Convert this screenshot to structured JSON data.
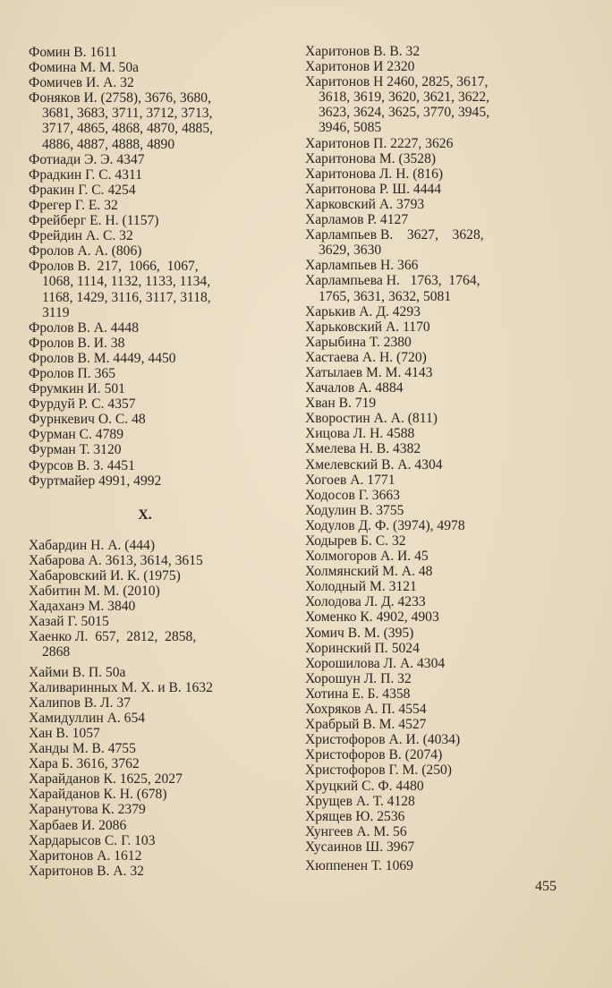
{
  "page_number": "455",
  "left_column": {
    "entries_before": [
      [
        "Фомин В. 1611"
      ],
      [
        "Фомина М. М. 50а"
      ],
      [
        "Фомичев И. А. 32"
      ],
      [
        "Фоняков И. (2758), 3676, 3680,",
        "3681, 3683, 3711, 3712, 3713,",
        "3717, 4865, 4868, 4870, 4885,",
        "4886, 4887, 4888, 4890"
      ],
      [
        "Фотиади Э. Э. 4347"
      ],
      [
        "Фрадкин Г. С. 4311"
      ],
      [
        "Фракин Г. С. 4254"
      ],
      [
        "Фрегер Г. Е. 32"
      ],
      [
        "Фрейберг Е. Н. (1157)"
      ],
      [
        "Фрейдин А. С. 32"
      ],
      [
        "Фролов А. А. (806)"
      ],
      [
        "Фролов В.  217,  1066,  1067,",
        "1068, 1114, 1132, 1133, 1134,",
        "1168, 1429, 3116, 3117, 3118,",
        "3119"
      ],
      [
        "Фролов В. А. 4448"
      ],
      [
        "Фролов В. И. 38"
      ],
      [
        "Фролов В. М. 4449, 4450"
      ],
      [
        "Фролов П. 365"
      ],
      [
        "Фрумкин И. 501"
      ],
      [
        "Фурдуй Р. С. 4357"
      ],
      [
        "Фурнкевич О. С. 48"
      ],
      [
        "Фурман С. 4789"
      ],
      [
        "Фурман Т. 3120"
      ],
      [
        "Фурсов В. З. 4451"
      ],
      [
        "Фуртмайер 4991, 4992"
      ]
    ],
    "section_heading": "Х.",
    "entries_after": [
      [
        "Хабардин Н. А. (444)"
      ],
      [
        "Хабарова А. 3613, 3614, 3615"
      ],
      [
        "Хабаровский И. К. (1975)"
      ],
      [
        "Хабитин М. М. (2010)"
      ],
      [
        "Хадаханэ М. 3840"
      ],
      [
        "Хазай Г. 5015"
      ],
      [
        "Хаенко Л.  657,  2812,  2858,",
        "2868"
      ],
      [
        "Хайми В. П. 50а"
      ],
      [
        "Халиваринных М. Х. и В. 1632"
      ],
      [
        "Халипов В. Л. 37"
      ],
      [
        "Хамидуллин А. 654"
      ],
      [
        "Хан В. 1057"
      ],
      [
        "Ханды М. В. 4755"
      ],
      [
        "Хара Б. 3616, 3762"
      ],
      [
        "Харайданов К. 1625, 2027"
      ],
      [
        "Харайданов К. Н. (678)"
      ],
      [
        "Харанутова К. 2379"
      ],
      [
        "Харбаев И. 2086"
      ],
      [
        "Хардарысов С. Г. 103"
      ],
      [
        "Харитонов А. 1612"
      ],
      [
        "Харитонов В. А. 32"
      ]
    ]
  },
  "right_column": {
    "entries": [
      [
        "Харитонов В. В. 32"
      ],
      [
        "Харитонов И 2320"
      ],
      [
        "Харитонов Н 2460, 2825, 3617,",
        "3618, 3619, 3620, 3621, 3622,",
        "3623, 3624, 3625, 3770, 3945,",
        "3946, 5085"
      ],
      [
        "Харитонов П. 2227, 3626"
      ],
      [
        "Харитонова М. (3528)"
      ],
      [
        "Харитонова Л. Н. (816)"
      ],
      [
        "Харитонова Р. Ш. 4444"
      ],
      [
        "Харковский А. 3793"
      ],
      [
        "Харламов Р. 4127"
      ],
      [
        "Харлампьев В.    3627,    3628,",
        "3629, 3630"
      ],
      [
        "Харлампьев Н. 366"
      ],
      [
        "Харлампьева Н.   1763,  1764,",
        "1765, 3631, 3632, 5081"
      ],
      [
        "Харькив А. Д. 4293"
      ],
      [
        "Харьковский А. 1170"
      ],
      [
        "Харыбина Т. 2380"
      ],
      [
        "Хастаева А. Н. (720)"
      ],
      [
        "Хатылаев М. М. 4143"
      ],
      [
        "Хачалов А. 4884"
      ],
      [
        "Хван В. 719"
      ],
      [
        "Хворостин А. А. (811)"
      ],
      [
        "Хицова Л. Н. 4588"
      ],
      [
        "Хмелева Н. В. 4382"
      ],
      [
        "Хмелевский В. А. 4304"
      ],
      [
        "Хогоев А. 1771"
      ],
      [
        "Ходосов Г. 3663"
      ],
      [
        "Ходулин В. 3755"
      ],
      [
        "Ходулов Д. Ф. (3974), 4978"
      ],
      [
        "Ходырев Б. С. 32"
      ],
      [
        "Холмогоров А. И. 45"
      ],
      [
        "Холмянский М. А. 48"
      ],
      [
        "Холодный М. 3121"
      ],
      [
        "Холодова Л. Д. 4233"
      ],
      [
        "Хоменко К. 4902, 4903"
      ],
      [
        "Хомич В. М. (395)"
      ],
      [
        "Хоринский П. 5024"
      ],
      [
        "Хорошилова Л. А. 4304"
      ],
      [
        "Хорошун Л. П. 32"
      ],
      [
        "Хотина Е. Б. 4358"
      ],
      [
        "Хохряков А. П. 4554"
      ],
      [
        "Храбрый В. М. 4527"
      ],
      [
        "Христофоров А. И. (4034)"
      ],
      [
        "Христофоров В. (2074)"
      ],
      [
        "Христофоров Г. М. (250)"
      ],
      [
        "Хруцкий С. Ф. 4480"
      ],
      [
        "Хрущев А. Т. 4128"
      ],
      [
        "Хрящев Ю. 2536"
      ],
      [
        "Хунгеев А. М. 56"
      ],
      [
        "Хусаинов Ш. 3967"
      ],
      [
        "Хюппенен Т. 1069"
      ]
    ]
  }
}
